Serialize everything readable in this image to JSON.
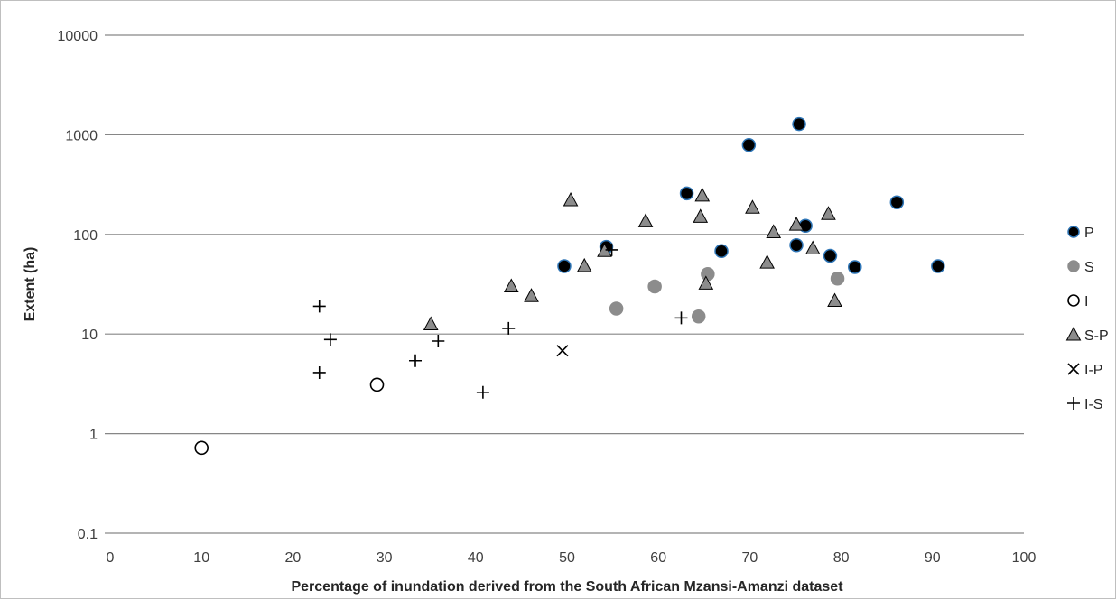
{
  "chart_data": {
    "type": "scatter",
    "title": "",
    "xlabel": "Percentage of inundation derived from the South African Mzansi-Amanzi dataset",
    "ylabel": "Extent (ha)",
    "xlim": [
      0,
      100
    ],
    "ylim": [
      0.1,
      10000
    ],
    "y_scale": "log",
    "grid": "horizontal major gridlines",
    "legend_position": "right",
    "x_ticks": [
      "0",
      "10",
      "20",
      "30",
      "40",
      "50",
      "60",
      "70",
      "80",
      "90",
      "100"
    ],
    "y_ticks": [
      "0.1",
      "1",
      "10",
      "100",
      "1000",
      "10000"
    ],
    "series": [
      {
        "name": "P",
        "marker": "filled-circle",
        "fill": "#000000",
        "stroke": "#2e75b6",
        "points": [
          [
            49.7,
            48
          ],
          [
            54.3,
            75
          ],
          [
            63.1,
            258
          ],
          [
            66.9,
            68
          ],
          [
            69.9,
            790
          ],
          [
            75.1,
            78
          ],
          [
            75.4,
            1280
          ],
          [
            76.1,
            122
          ],
          [
            78.8,
            61
          ],
          [
            81.5,
            47
          ],
          [
            86.1,
            210
          ],
          [
            90.6,
            48
          ]
        ]
      },
      {
        "name": "S",
        "marker": "filled-circle",
        "fill": "#8c8c8c",
        "stroke": "#8c8c8c",
        "points": [
          [
            55.4,
            18
          ],
          [
            59.6,
            30
          ],
          [
            64.4,
            15
          ],
          [
            65.4,
            40
          ],
          [
            79.6,
            36
          ]
        ]
      },
      {
        "name": "I",
        "marker": "open-circle",
        "fill": "#ffffff",
        "stroke": "#000000",
        "points": [
          [
            10,
            0.72
          ],
          [
            29.2,
            3.1
          ]
        ]
      },
      {
        "name": "S-P",
        "marker": "triangle",
        "fill": "#8c8c8c",
        "stroke": "#000000",
        "points": [
          [
            35.1,
            12.5
          ],
          [
            43.9,
            30
          ],
          [
            46.1,
            24
          ],
          [
            50.4,
            220
          ],
          [
            51.9,
            48
          ],
          [
            54.1,
            68
          ],
          [
            58.6,
            135
          ],
          [
            64.6,
            150
          ],
          [
            64.8,
            245
          ],
          [
            65.2,
            32
          ],
          [
            70.3,
            185
          ],
          [
            71.9,
            52
          ],
          [
            72.6,
            105
          ],
          [
            75.1,
            125
          ],
          [
            76.9,
            72
          ],
          [
            78.6,
            160
          ],
          [
            79.3,
            21.5
          ]
        ]
      },
      {
        "name": "I-P",
        "marker": "x",
        "fill": "none",
        "stroke": "#000000",
        "points": [
          [
            49.5,
            6.8
          ]
        ]
      },
      {
        "name": "I-S",
        "marker": "plus",
        "fill": "none",
        "stroke": "#000000",
        "points": [
          [
            22.9,
            19
          ],
          [
            22.9,
            4.1
          ],
          [
            24.1,
            8.8
          ],
          [
            33.4,
            5.4
          ],
          [
            35.9,
            8.5
          ],
          [
            40.8,
            2.6
          ],
          [
            43.6,
            11.4
          ],
          [
            54.9,
            70
          ],
          [
            62.5,
            14.5
          ]
        ]
      }
    ]
  }
}
